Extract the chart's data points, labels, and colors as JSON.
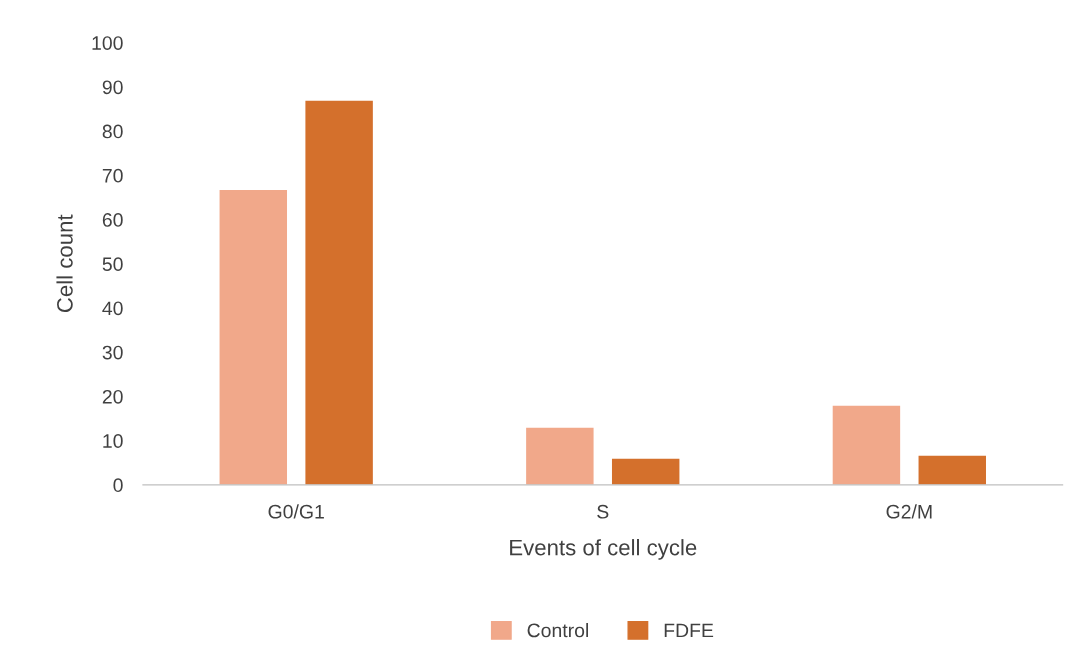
{
  "chart_data": {
    "type": "bar",
    "xlabel": "Events of cell cycle",
    "ylabel": "Cell count",
    "categories": [
      "G0/G1",
      "S",
      "G2/M"
    ],
    "series": [
      {
        "name": "Control",
        "color": "#f1a88a",
        "values": [
          66.7,
          12.9,
          17.9
        ]
      },
      {
        "name": "FDFE",
        "color": "#d4702c",
        "values": [
          86.9,
          5.9,
          6.6
        ]
      }
    ],
    "ylim": [
      0,
      100
    ],
    "yticks": [
      0,
      10,
      20,
      30,
      40,
      50,
      60,
      70,
      80,
      90,
      100
    ],
    "grid": false,
    "legend": "bottom"
  }
}
